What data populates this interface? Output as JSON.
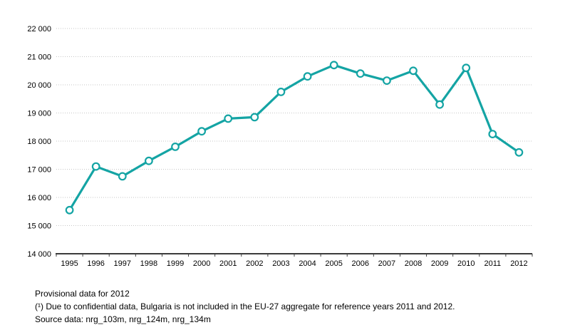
{
  "chart_data": {
    "type": "line",
    "title": "",
    "xlabel": "",
    "ylabel": "",
    "categories": [
      "1995",
      "1996",
      "1997",
      "1998",
      "1999",
      "2000",
      "2001",
      "2002",
      "2003",
      "2004",
      "2005",
      "2006",
      "2007",
      "2008",
      "2009",
      "2010",
      "2011",
      "2012"
    ],
    "series": [
      {
        "name": "EU-27 aggregate",
        "values": [
          15550,
          17100,
          16750,
          17300,
          17800,
          18350,
          18800,
          18850,
          19750,
          20300,
          20700,
          20400,
          20150,
          20500,
          19300,
          20600,
          18250,
          17600
        ]
      }
    ],
    "ylim": [
      14000,
      22000
    ],
    "yticks": [
      {
        "value": 14000,
        "label": "14 000"
      },
      {
        "value": 15000,
        "label": "15 000"
      },
      {
        "value": 16000,
        "label": "16 000"
      },
      {
        "value": 17000,
        "label": "17 000"
      },
      {
        "value": 18000,
        "label": "18 000"
      },
      {
        "value": 19000,
        "label": "19 000"
      },
      {
        "value": 20000,
        "label": "20 000"
      },
      {
        "value": 21000,
        "label": "21 000"
      },
      {
        "value": 22000,
        "label": "22 000"
      }
    ],
    "grid": "horizontal-dotted",
    "legend": "none",
    "marker": "open-circle",
    "colors": {
      "line": "#14a4a4",
      "marker_fill": "#ffffff",
      "grid": "#c6c6c6",
      "axis": "#3c3c3c",
      "text": "#000000"
    }
  },
  "footnotes": {
    "provisional": "Provisional data for 2012",
    "confidential": "(¹) Due to confidential data, Bulgaria is not included in the EU-27 aggregate for reference years 2011 and 2012.",
    "source": "Source data: nrg_103m, nrg_124m, nrg_134m"
  }
}
